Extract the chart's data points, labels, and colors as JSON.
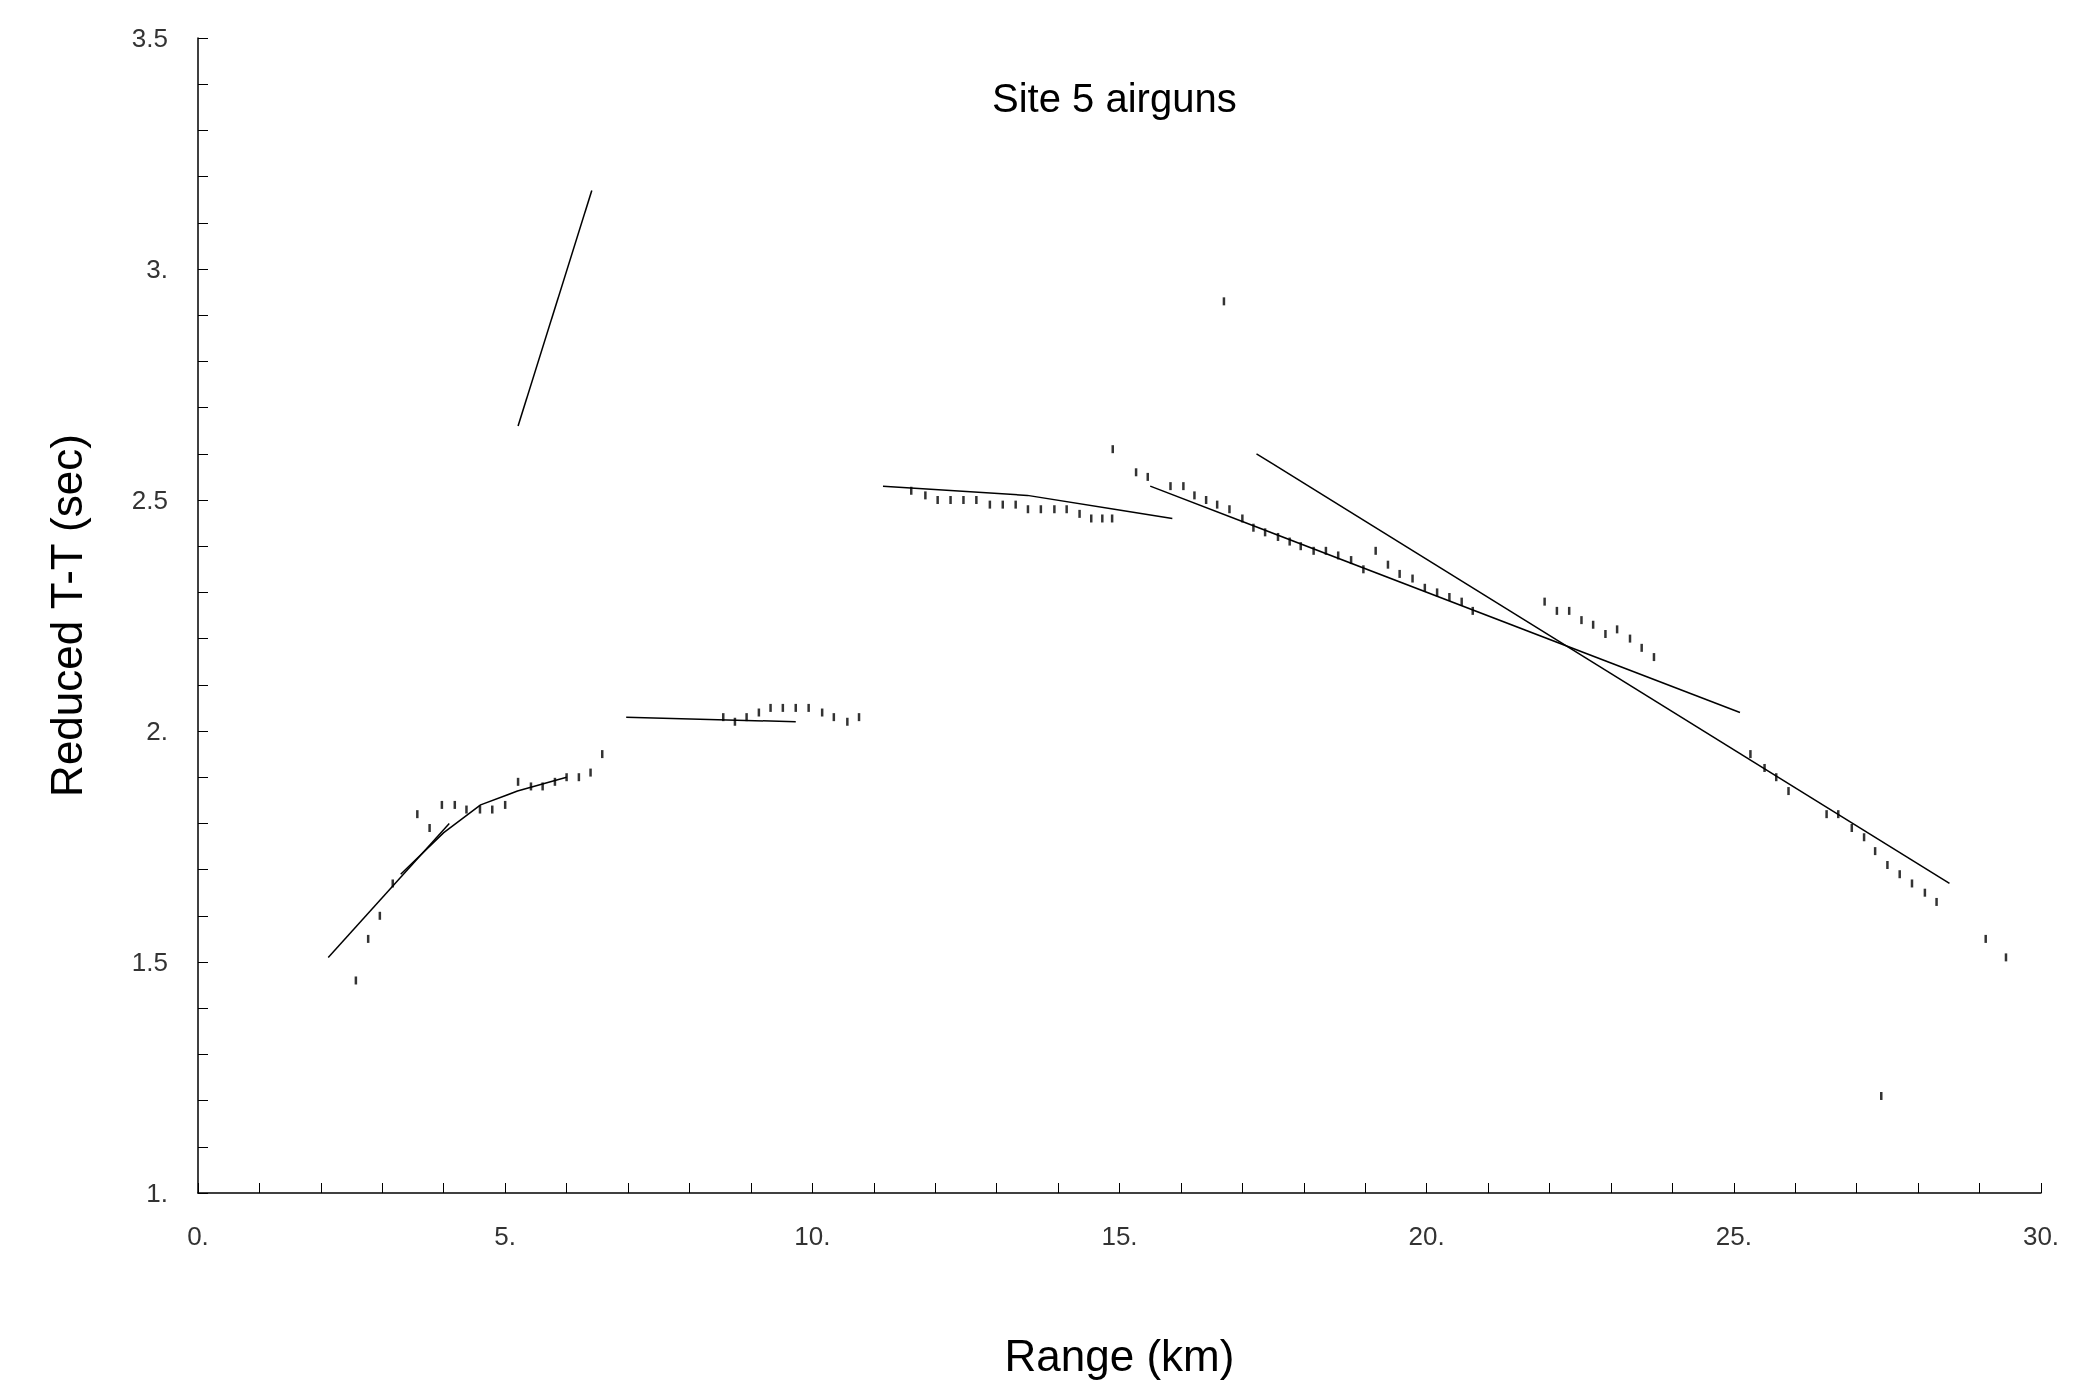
{
  "chart_data": {
    "type": "scatter",
    "title": "Site 5 airguns",
    "xlabel": "Range (km)",
    "ylabel": "Reduced T-T (sec)",
    "xlim": [
      0,
      30
    ],
    "ylim": [
      1,
      3.5
    ],
    "xticks": [
      {
        "value": 0,
        "label": "0."
      },
      {
        "value": 1,
        "label": null
      },
      {
        "value": 2,
        "label": null
      },
      {
        "value": 3,
        "label": null
      },
      {
        "value": 4,
        "label": null
      },
      {
        "value": 5,
        "label": "5."
      },
      {
        "value": 6,
        "label": null
      },
      {
        "value": 7,
        "label": null
      },
      {
        "value": 8,
        "label": null
      },
      {
        "value": 9,
        "label": null
      },
      {
        "value": 10,
        "label": "10."
      },
      {
        "value": 11,
        "label": null
      },
      {
        "value": 12,
        "label": null
      },
      {
        "value": 13,
        "label": null
      },
      {
        "value": 14,
        "label": null
      },
      {
        "value": 15,
        "label": "15."
      },
      {
        "value": 16,
        "label": null
      },
      {
        "value": 17,
        "label": null
      },
      {
        "value": 18,
        "label": null
      },
      {
        "value": 19,
        "label": null
      },
      {
        "value": 20,
        "label": "20."
      },
      {
        "value": 21,
        "label": null
      },
      {
        "value": 22,
        "label": null
      },
      {
        "value": 23,
        "label": null
      },
      {
        "value": 24,
        "label": null
      },
      {
        "value": 25,
        "label": "25."
      },
      {
        "value": 26,
        "label": null
      },
      {
        "value": 27,
        "label": null
      },
      {
        "value": 28,
        "label": null
      },
      {
        "value": 29,
        "label": null
      },
      {
        "value": 30,
        "label": "30."
      }
    ],
    "yticks": [
      {
        "value": 1,
        "label": "1."
      },
      {
        "value": 1.1,
        "label": null
      },
      {
        "value": 1.2,
        "label": null
      },
      {
        "value": 1.3,
        "label": null
      },
      {
        "value": 1.4,
        "label": null
      },
      1.5,
      {
        "value": 1.6,
        "label": null
      },
      {
        "value": 1.7,
        "label": null
      },
      {
        "value": 1.8,
        "label": null
      },
      {
        "value": 1.9,
        "label": null
      },
      {
        "value": 2,
        "label": "2."
      },
      {
        "value": 2.1,
        "label": null
      },
      {
        "value": 2.2,
        "label": null
      },
      {
        "value": 2.3,
        "label": null
      },
      {
        "value": 2.4,
        "label": null
      },
      2.5,
      {
        "value": 2.6,
        "label": null
      },
      {
        "value": 2.7,
        "label": null
      },
      {
        "value": 2.8,
        "label": null
      },
      {
        "value": 2.9,
        "label": null
      },
      {
        "value": 3,
        "label": "3."
      },
      {
        "value": 3.1,
        "label": null
      },
      {
        "value": 3.2,
        "label": null
      },
      {
        "value": 3.3,
        "label": null
      },
      {
        "value": 3.4,
        "label": null
      },
      3.5
    ],
    "grid": false,
    "series": [
      {
        "color": "#000000",
        "x": [
          2.57,
          2.77,
          2.96,
          3.17,
          3.57,
          3.77,
          3.97,
          4.18,
          4.37,
          4.59,
          4.79,
          5.0,
          5.21,
          5.42,
          5.61,
          5.81,
          6.0,
          6.2,
          6.39,
          6.58,
          8.55,
          8.74,
          8.93,
          9.13,
          9.32,
          9.52,
          9.73,
          9.94,
          10.16,
          10.35,
          10.57,
          10.76,
          11.61,
          11.84,
          12.04,
          12.25,
          12.46,
          12.67,
          12.89,
          13.1,
          13.31,
          13.51,
          13.72,
          13.94,
          14.14,
          14.35,
          14.54,
          14.72,
          14.88,
          14.89,
          15.27,
          15.46,
          15.83,
          16.04,
          16.22,
          16.41,
          16.59,
          16.7,
          16.79,
          17.0,
          17.18,
          17.37,
          17.58,
          17.77,
          17.95,
          18.16,
          18.36,
          18.56,
          18.77,
          18.97,
          19.17,
          19.37,
          19.56,
          19.77,
          19.97,
          20.17,
          20.37,
          20.57,
          20.75,
          21.92,
          22.12,
          22.32,
          22.52,
          22.71,
          22.91,
          23.1,
          23.31,
          23.5,
          23.7,
          25.27,
          25.5,
          25.69,
          25.89,
          26.51,
          26.7,
          26.92,
          27.12,
          27.3,
          27.4,
          27.5,
          27.7,
          27.9,
          28.11,
          28.3,
          29.1,
          29.43
        ],
        "values": [
          1.46,
          1.55,
          1.6,
          1.67,
          1.82,
          1.79,
          1.84,
          1.84,
          1.83,
          1.83,
          1.83,
          1.84,
          1.89,
          1.88,
          1.88,
          1.89,
          1.9,
          1.9,
          1.91,
          1.95,
          2.03,
          2.02,
          2.03,
          2.04,
          2.05,
          2.05,
          2.05,
          2.05,
          2.04,
          2.03,
          2.02,
          2.03,
          2.52,
          2.51,
          2.5,
          2.5,
          2.5,
          2.5,
          2.49,
          2.49,
          2.49,
          2.48,
          2.48,
          2.48,
          2.48,
          2.47,
          2.46,
          2.46,
          2.46,
          2.61,
          2.56,
          2.55,
          2.53,
          2.53,
          2.51,
          2.5,
          2.49,
          2.93,
          2.48,
          2.46,
          2.44,
          2.43,
          2.42,
          2.41,
          2.4,
          2.39,
          2.39,
          2.38,
          2.37,
          2.35,
          2.39,
          2.36,
          2.34,
          2.33,
          2.31,
          2.3,
          2.29,
          2.28,
          2.26,
          2.28,
          2.26,
          2.26,
          2.24,
          2.23,
          2.21,
          2.22,
          2.2,
          2.18,
          2.16,
          1.95,
          1.92,
          1.9,
          1.87,
          1.82,
          1.82,
          1.79,
          1.77,
          1.74,
          1.21,
          1.71,
          1.69,
          1.67,
          1.65,
          1.63,
          1.55,
          1.51
        ]
      },
      {
        "type": "line",
        "color": "#000000",
        "x": [
          5.21,
          6.41
        ],
        "values": [
          2.66,
          3.17
        ]
      },
      {
        "type": "line",
        "color": "#000000",
        "x": [
          2.12,
          4.09
        ],
        "values": [
          1.51,
          1.8
        ]
      },
      {
        "type": "line",
        "color": "#000000",
        "x": [
          3.3,
          4.0,
          4.6,
          5.2,
          6.0
        ],
        "values": [
          1.69,
          1.78,
          1.84,
          1.87,
          1.9
        ]
      },
      {
        "type": "line",
        "color": "#000000",
        "x": [
          6.97,
          9.73
        ],
        "values": [
          2.03,
          2.02
        ]
      },
      {
        "type": "line",
        "color": "#000000",
        "x": [
          11.15,
          13.5,
          15.86
        ],
        "values": [
          2.53,
          2.51,
          2.46
        ]
      },
      {
        "type": "line",
        "color": "#000000",
        "x": [
          15.5,
          25.1
        ],
        "values": [
          2.53,
          2.04
        ]
      },
      {
        "type": "line",
        "color": "#000000",
        "x": [
          17.23,
          28.51
        ],
        "values": [
          2.6,
          1.67
        ]
      }
    ]
  }
}
